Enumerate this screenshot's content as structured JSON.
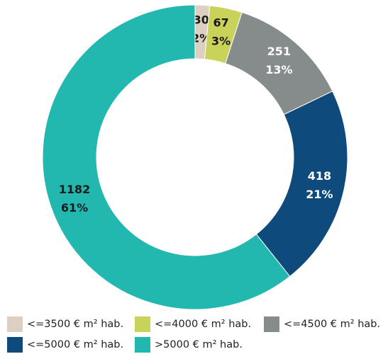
{
  "chart_data": {
    "type": "donut",
    "categories": [
      "<=3500 € m² hab.",
      "<=4000 € m² hab.",
      "<=4500 € m² hab.",
      "<=5000 € m² hab.",
      ">5000 € m² hab."
    ],
    "values": [
      30,
      67,
      251,
      418,
      1182
    ],
    "percent_labels": [
      "2%",
      "3%",
      "13%",
      "21%",
      "61%"
    ],
    "colors": [
      "#ddd0c3",
      "#c9d35a",
      "#868b8b",
      "#0e4a7b",
      "#22b8b0"
    ],
    "label_colors": [
      "#1a1a1a",
      "#1a1a1a",
      "#ffffff",
      "#ffffff",
      "#1a1a1a"
    ],
    "legend": "bottom"
  }
}
